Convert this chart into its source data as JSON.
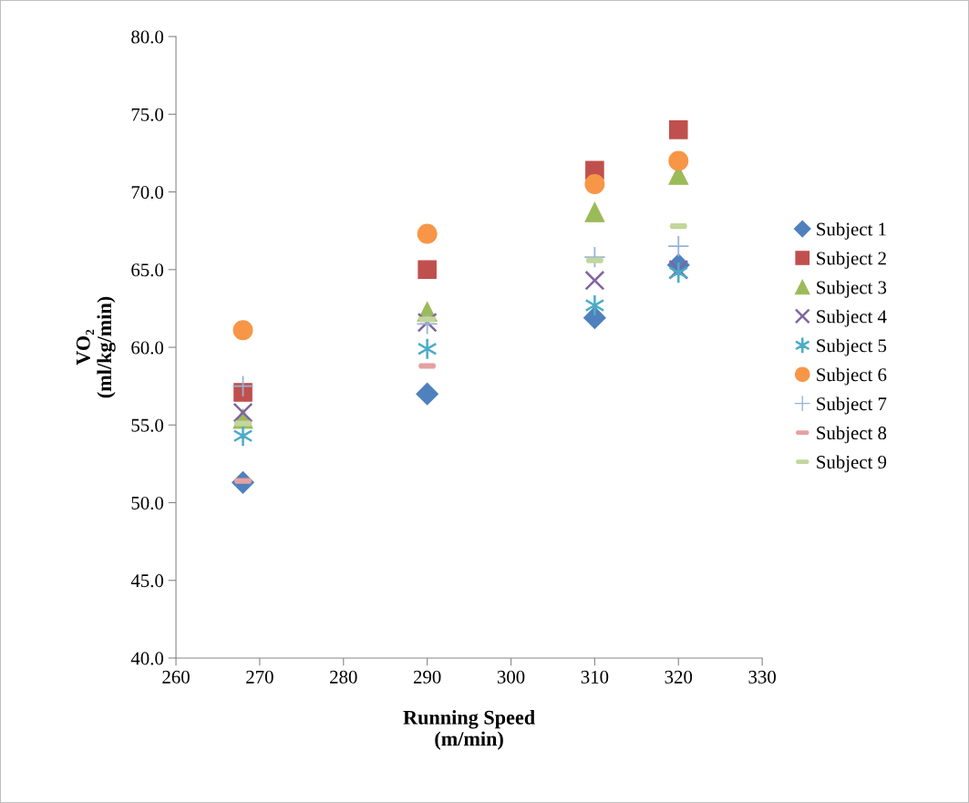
{
  "chart_data": {
    "type": "scatter",
    "xlabel": "Running Speed\n(m/min)",
    "ylabel": "VO₂\n(ml/kg/min)",
    "x": [
      268,
      290,
      310,
      320
    ],
    "series": [
      {
        "name": "Subject 1",
        "color": "#4f81bd",
        "marker": "diamond",
        "values": [
          51.3,
          57.0,
          61.9,
          65.3
        ]
      },
      {
        "name": "Subject 2",
        "color": "#c0504d",
        "marker": "square",
        "values": [
          57.1,
          65.0,
          71.4,
          74.0
        ]
      },
      {
        "name": "Subject 3",
        "color": "#9bbb59",
        "marker": "triangle",
        "values": [
          55.4,
          62.3,
          68.7,
          71.1
        ]
      },
      {
        "name": "Subject 4",
        "color": "#8064a2",
        "marker": "cross",
        "values": [
          55.8,
          61.6,
          64.3,
          65.0
        ]
      },
      {
        "name": "Subject 5",
        "color": "#4bacc6",
        "values": [
          54.3,
          59.9,
          62.7,
          64.8
        ]
      },
      {
        "name": "Subject 6",
        "color": "#f79646",
        "marker": "circle",
        "values": [
          61.1,
          67.3,
          70.5,
          72.0
        ]
      },
      {
        "name": "Subject 7",
        "color": "#95b3d7",
        "values": [
          57.5,
          61.5,
          65.8,
          66.5
        ]
      },
      {
        "name": "Subject 8",
        "color": "#e6a0a0",
        "values": [
          51.4,
          58.8,
          null,
          null
        ]
      },
      {
        "name": "Subject 9",
        "color": "#c3d69b",
        "values": [
          55.1,
          61.8,
          65.6,
          67.8
        ]
      }
    ],
    "xlim": [
      260,
      330
    ],
    "xticks": [
      260,
      270,
      280,
      290,
      300,
      310,
      320,
      330
    ],
    "ylim": [
      40,
      80
    ],
    "yticks": [
      {
        "value": 40,
        "label": "40.0"
      },
      {
        "value": 45,
        "label": "45.0"
      },
      {
        "value": 50,
        "label": "50.0"
      },
      {
        "value": 55,
        "label": "55.0"
      },
      {
        "value": 60,
        "label": "60.0"
      },
      {
        "value": 65,
        "label": "65.0"
      },
      {
        "value": 70,
        "label": "70.0"
      },
      {
        "value": 75,
        "label": "75.0"
      },
      {
        "value": 80,
        "label": "80.0"
      }
    ],
    "grid": false,
    "legend": "right"
  }
}
